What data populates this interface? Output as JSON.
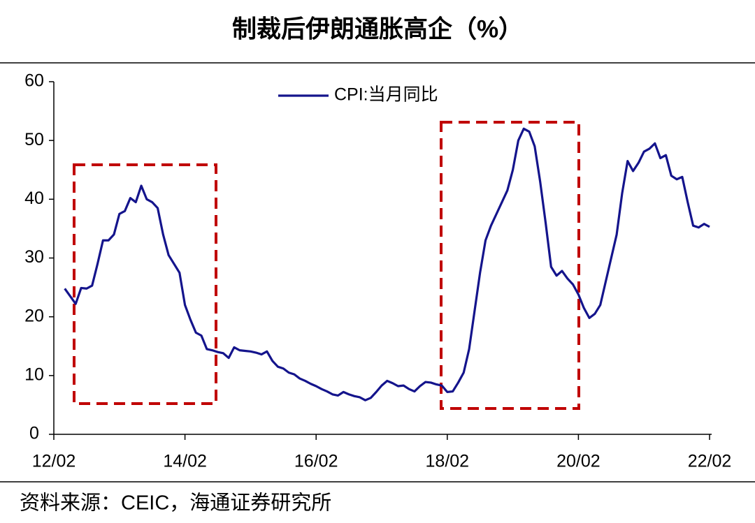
{
  "chart_data": {
    "type": "line",
    "title": "制裁后伊朗通胀高企（%）",
    "source": "资料来源：CEIC，海通证券研究所",
    "legend": "top",
    "xlim": [
      "2012-02",
      "2022-02"
    ],
    "xticks": [
      {
        "value": "2012-02",
        "label": "12/02"
      },
      {
        "value": "2014-02",
        "label": "14/02"
      },
      {
        "value": "2016-02",
        "label": "16/02"
      },
      {
        "value": "2018-02",
        "label": "18/02"
      },
      {
        "value": "2020-02",
        "label": "20/02"
      },
      {
        "value": "2022-02",
        "label": "22/02"
      }
    ],
    "ylim": [
      0,
      60
    ],
    "yticks": [
      0,
      10,
      20,
      30,
      40,
      50,
      60
    ],
    "x": [
      "2012-04",
      "2012-05",
      "2012-06",
      "2012-07",
      "2012-08",
      "2012-09",
      "2012-10",
      "2012-11",
      "2012-12",
      "2013-01",
      "2013-02",
      "2013-03",
      "2013-04",
      "2013-05",
      "2013-06",
      "2013-07",
      "2013-08",
      "2013-09",
      "2013-10",
      "2013-11",
      "2013-12",
      "2014-01",
      "2014-02",
      "2014-03",
      "2014-04",
      "2014-05",
      "2014-06",
      "2014-07",
      "2014-08",
      "2014-09",
      "2014-10",
      "2014-11",
      "2014-12",
      "2015-01",
      "2015-02",
      "2015-03",
      "2015-04",
      "2015-05",
      "2015-06",
      "2015-07",
      "2015-08",
      "2015-09",
      "2015-10",
      "2015-11",
      "2015-12",
      "2016-01",
      "2016-02",
      "2016-03",
      "2016-04",
      "2016-05",
      "2016-06",
      "2016-07",
      "2016-08",
      "2016-09",
      "2016-10",
      "2016-11",
      "2016-12",
      "2017-01",
      "2017-02",
      "2017-03",
      "2017-04",
      "2017-05",
      "2017-06",
      "2017-07",
      "2017-08",
      "2017-09",
      "2017-10",
      "2017-11",
      "2017-12",
      "2018-01",
      "2018-02",
      "2018-03",
      "2018-04",
      "2018-05",
      "2018-06",
      "2018-07",
      "2018-08",
      "2018-09",
      "2018-10",
      "2018-11",
      "2018-12",
      "2019-01",
      "2019-02",
      "2019-03",
      "2019-04",
      "2019-05",
      "2019-06",
      "2019-07",
      "2019-08",
      "2019-09",
      "2019-10",
      "2019-11",
      "2019-12",
      "2020-01",
      "2020-02",
      "2020-03",
      "2020-04",
      "2020-05",
      "2020-06",
      "2020-07",
      "2020-08",
      "2020-09",
      "2020-10",
      "2020-11",
      "2020-12",
      "2021-01",
      "2021-02",
      "2021-03",
      "2021-04",
      "2021-05",
      "2021-06",
      "2021-07",
      "2021-08",
      "2021-09",
      "2021-10",
      "2021-11",
      "2021-12",
      "2022-01",
      "2022-02"
    ],
    "series": [
      {
        "name": "CPI:当月同比",
        "color": "#14148c",
        "values": [
          24.8,
          23.5,
          22.2,
          24.9,
          24.8,
          25.3,
          29,
          33,
          33,
          34,
          37.5,
          38,
          40.2,
          39.5,
          42.3,
          40,
          39.5,
          38.5,
          34,
          30.5,
          29,
          27.5,
          22,
          19.5,
          17.3,
          16.8,
          14.5,
          14.3,
          14,
          13.8,
          13,
          14.8,
          14.3,
          14.2,
          14.1,
          13.9,
          13.6,
          14.1,
          12.5,
          11.5,
          11.2,
          10.5,
          10.2,
          9.5,
          9.1,
          8.6,
          8.2,
          7.7,
          7.3,
          6.8,
          6.6,
          7.2,
          6.8,
          6.5,
          6.3,
          5.8,
          6.2,
          7.2,
          8.3,
          9.1,
          8.7,
          8.2,
          8.3,
          7.7,
          7.3,
          8.2,
          8.9,
          8.8,
          8.5,
          8.3,
          7.2,
          7.3,
          8.8,
          10.5,
          14.5,
          21,
          27.5,
          33,
          35.5,
          37.5,
          39.5,
          41.5,
          45,
          50,
          52,
          51.5,
          49,
          43,
          36,
          28.5,
          27,
          27.8,
          26.5,
          25.5,
          23.8,
          21.5,
          19.8,
          20.5,
          22,
          26,
          30,
          34,
          41,
          46.5,
          44.8,
          46.2,
          48.1,
          48.6,
          49.5,
          47,
          47.5,
          44,
          43.4,
          43.8,
          39.5,
          35.5,
          35.2,
          35.8,
          35.3
        ]
      }
    ]
  }
}
